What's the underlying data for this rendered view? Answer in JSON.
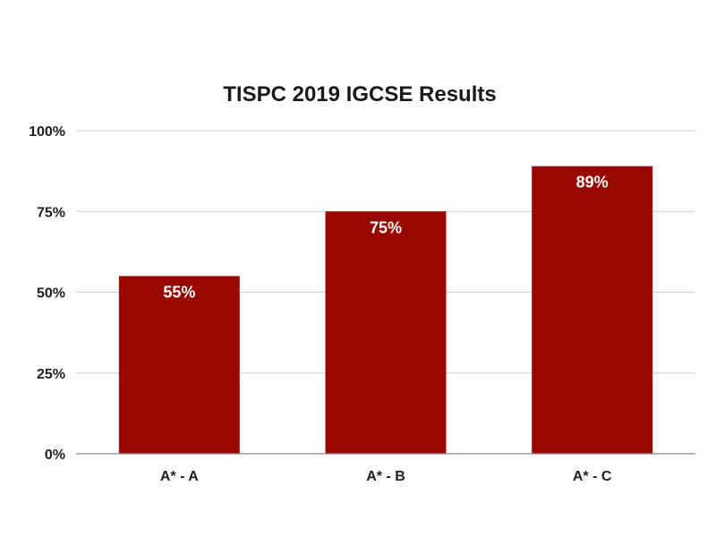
{
  "chart_data": {
    "type": "bar",
    "title": "TISPC 2019 IGCSE Results",
    "categories": [
      "A* - A",
      "A* - B",
      "A* - C"
    ],
    "values": [
      55,
      75,
      89
    ],
    "data_labels": [
      "55%",
      "75%",
      "89%"
    ],
    "ylim": [
      0,
      100
    ],
    "yticks": [
      0,
      25,
      50,
      75,
      100
    ],
    "ytick_labels": [
      "0%",
      "25%",
      "50%",
      "75%",
      "100%"
    ],
    "grid": true,
    "legend": "none",
    "bar_color": "#990800"
  }
}
